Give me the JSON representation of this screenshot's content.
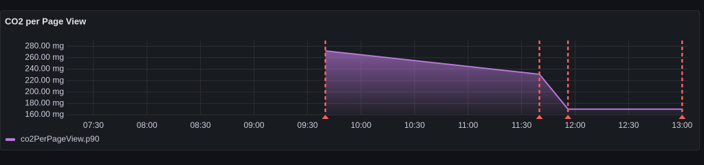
{
  "chart_data": {
    "type": "line",
    "title": "CO2 per Page View",
    "x": [
      "09:40",
      "11:40",
      "11:56",
      "13:00"
    ],
    "series": [
      {
        "name": "co2PerPageView.p90",
        "color": "#b877d9",
        "values": [
          272,
          231,
          170,
          170
        ]
      }
    ],
    "xlim": [
      "07:15",
      "13:03"
    ],
    "xticks": [
      "07:30",
      "08:00",
      "08:30",
      "09:00",
      "09:30",
      "10:00",
      "10:30",
      "11:00",
      "11:30",
      "12:00",
      "12:30",
      "13:00"
    ],
    "ylim": [
      160,
      290
    ],
    "yticks": [
      {
        "value": 160,
        "label": "160.00 mg"
      },
      {
        "value": 180,
        "label": "180.00 mg"
      },
      {
        "value": 200,
        "label": "200.00 mg"
      },
      {
        "value": 220,
        "label": "220.00 mg"
      },
      {
        "value": 240,
        "label": "240.00 mg"
      },
      {
        "value": 260,
        "label": "260.00 mg"
      },
      {
        "value": 280,
        "label": "280.00 mg"
      }
    ],
    "annotations": [
      "09:40",
      "11:40",
      "11:56",
      "13:00"
    ],
    "annotation_color": "#ff5f5f",
    "grid": true
  }
}
